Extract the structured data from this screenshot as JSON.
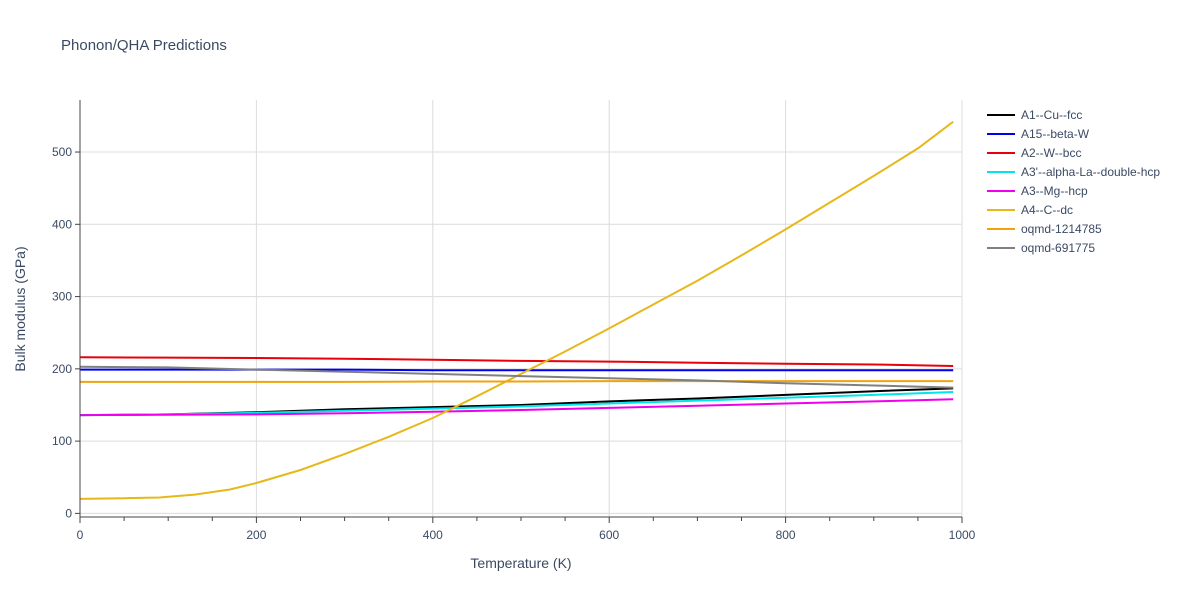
{
  "chart_data": {
    "type": "line",
    "title": "Phonon/QHA Predictions",
    "xlabel": "Temperature (K)",
    "ylabel": "Bulk modulus (GPa)",
    "xlim": [
      0,
      1000
    ],
    "ylim": [
      -5,
      572
    ],
    "xticks": [
      0,
      200,
      400,
      600,
      800,
      1000
    ],
    "yticks": [
      0,
      100,
      200,
      300,
      400,
      500
    ],
    "grid": true,
    "legend_position": "right",
    "series": [
      {
        "name": "A1--Cu--fcc",
        "color": "#000000",
        "x": [
          0,
          100,
          200,
          300,
          400,
          500,
          600,
          700,
          800,
          900,
          990
        ],
        "y": [
          136,
          137,
          140,
          144,
          147,
          150,
          155,
          159,
          164,
          169,
          173
        ]
      },
      {
        "name": "A15--beta-W",
        "color": "#0000ee",
        "x": [
          0,
          100,
          200,
          300,
          400,
          500,
          600,
          700,
          800,
          900,
          990
        ],
        "y": [
          199,
          199,
          199,
          199,
          198,
          198,
          198,
          198,
          198,
          198,
          198
        ]
      },
      {
        "name": "A2--W--bcc",
        "color": "#e8000b",
        "x": [
          0,
          100,
          200,
          300,
          400,
          500,
          600,
          700,
          800,
          900,
          990
        ],
        "y": [
          216,
          215.5,
          215,
          214,
          212.5,
          211,
          210,
          208.5,
          207,
          206,
          204
        ]
      },
      {
        "name": "A3'--alpha-La--double-hcp",
        "color": "#00e5ee",
        "x": [
          0,
          100,
          200,
          300,
          400,
          500,
          600,
          700,
          800,
          900,
          990
        ],
        "y": [
          136,
          137,
          139,
          142,
          145,
          148,
          152,
          156,
          160,
          164,
          168
        ]
      },
      {
        "name": "A3--Mg--hcp",
        "color": "#ee00ee",
        "x": [
          0,
          100,
          200,
          300,
          400,
          500,
          600,
          700,
          800,
          900,
          990
        ],
        "y": [
          136,
          136.5,
          137,
          138.5,
          140.5,
          143,
          146,
          149,
          152,
          155,
          158
        ]
      },
      {
        "name": "A4--C--dc",
        "color": "#e6b81a",
        "x": [
          0,
          50,
          90,
          130,
          170,
          200,
          250,
          300,
          350,
          400,
          450,
          500,
          550,
          600,
          650,
          700,
          750,
          800,
          850,
          900,
          950,
          990
        ],
        "y": [
          20,
          21,
          22,
          26,
          33,
          42,
          60,
          82,
          106,
          132,
          162,
          193,
          224,
          256,
          289,
          322,
          357,
          393,
          430,
          467,
          505,
          542
        ]
      },
      {
        "name": "oqmd-1214785",
        "color": "#f0a30a",
        "x": [
          0,
          100,
          200,
          300,
          400,
          500,
          600,
          700,
          800,
          900,
          990
        ],
        "y": [
          182,
          182,
          182,
          182,
          182.5,
          182.5,
          183,
          183,
          183,
          183,
          183
        ]
      },
      {
        "name": "oqmd-691775",
        "color": "#808080",
        "x": [
          0,
          100,
          200,
          300,
          400,
          500,
          600,
          700,
          800,
          900,
          990
        ],
        "y": [
          203,
          202,
          199,
          196,
          193,
          190,
          187,
          184,
          180,
          177,
          174
        ]
      }
    ]
  }
}
